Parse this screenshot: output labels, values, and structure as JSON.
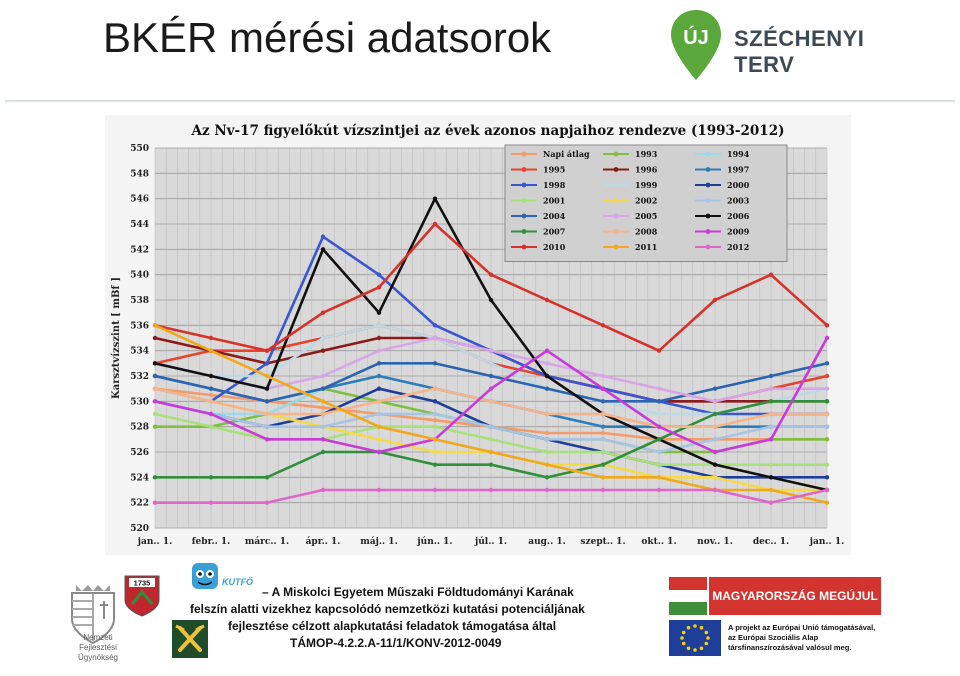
{
  "slide": {
    "title": "BKÉR mérési adatsorok"
  },
  "header_logo": {
    "text_uj": "ÚJ",
    "text_brand": "SZÉCHENYI TERV"
  },
  "chart_data": {
    "type": "line",
    "title": "Az Nv-17 figyelőkút vízszintjei az évek azonos napjaihoz rendezve (1993-2012)",
    "ylabel": "Karsztvízszint [ mBf ]",
    "xlabel": "",
    "ylim": [
      520,
      550
    ],
    "y_ticks": [
      "550",
      "548",
      "546",
      "544",
      "542",
      "540",
      "538",
      "536",
      "534",
      "532",
      "530",
      "528",
      "526",
      "524",
      "522",
      "520"
    ],
    "x_ticks": [
      "jan.. 1.",
      "febr.. 1.",
      "márc.. 1.",
      "ápr.. 1.",
      "máj.. 1.",
      "jún.. 1.",
      "júl.. 1.",
      "aug.. 1.",
      "szept.. 1.",
      "okt.. 1.",
      "nov.. 1.",
      "dec.. 1.",
      "jan.. 1."
    ],
    "grid": true,
    "legend_position": "top-right",
    "series": [
      {
        "name": "Napi átlag",
        "color": "#f39b6b",
        "values": [
          531,
          530.5,
          530,
          529.5,
          529,
          528.5,
          528,
          527.5,
          527.5,
          527,
          527,
          527,
          527
        ]
      },
      {
        "name": "1993",
        "color": "#7fbf3f",
        "values": [
          528,
          528,
          529,
          531,
          530,
          529,
          528,
          527,
          527,
          526,
          526,
          527,
          527
        ]
      },
      {
        "name": "1994",
        "color": "#9dd9e8",
        "values": [
          530,
          529,
          529,
          531,
          532,
          531,
          530,
          529,
          529,
          528,
          528,
          528,
          528
        ]
      },
      {
        "name": "1995",
        "color": "#e8432d",
        "values": [
          533,
          534,
          534,
          535,
          536,
          535,
          533,
          532,
          531,
          530,
          530,
          531,
          532
        ]
      },
      {
        "name": "1996",
        "color": "#8b1a1a",
        "values": [
          535,
          534,
          533,
          534,
          535,
          535,
          534,
          532,
          531,
          530,
          530,
          530,
          530
        ]
      },
      {
        "name": "1997",
        "color": "#2e7db8",
        "values": [
          532,
          531,
          530,
          531,
          532,
          531,
          530,
          529,
          528,
          528,
          528,
          528,
          528
        ]
      },
      {
        "name": "1998",
        "color": "#3a56d1",
        "values": [
          531,
          530,
          533,
          543,
          540,
          536,
          534,
          532,
          531,
          530,
          529,
          529,
          529
        ]
      },
      {
        "name": "1999",
        "color": "#bcd9e6",
        "values": [
          533,
          532,
          532,
          535,
          536,
          535,
          533,
          531,
          530,
          529,
          529,
          530,
          531
        ]
      },
      {
        "name": "2000",
        "color": "#1f3e9a",
        "values": [
          530,
          529,
          528,
          529,
          531,
          530,
          528,
          527,
          526,
          525,
          524,
          524,
          524
        ]
      },
      {
        "name": "2001",
        "color": "#a8e07a",
        "values": [
          529,
          528,
          527,
          527,
          528,
          528,
          527,
          526,
          526,
          525,
          525,
          525,
          525
        ]
      },
      {
        "name": "2002",
        "color": "#f5d94a",
        "values": [
          531,
          530,
          529,
          528,
          527,
          526,
          526,
          525,
          525,
          524,
          524,
          523,
          523
        ]
      },
      {
        "name": "2003",
        "color": "#a6c4e3",
        "values": [
          530,
          529,
          528,
          528,
          529,
          529,
          528,
          527,
          527,
          526,
          527,
          528,
          528
        ]
      },
      {
        "name": "2004",
        "color": "#2b64b0",
        "values": [
          532,
          531,
          530,
          531,
          533,
          533,
          532,
          531,
          530,
          530,
          531,
          532,
          533
        ]
      },
      {
        "name": "2005",
        "color": "#d8a6e8",
        "values": [
          533,
          532,
          531,
          532,
          534,
          535,
          534,
          533,
          532,
          531,
          530,
          531,
          531
        ]
      },
      {
        "name": "2006",
        "color": "#111111",
        "values": [
          533,
          532,
          531,
          542,
          537,
          546,
          538,
          532,
          529,
          527,
          525,
          524,
          523
        ]
      },
      {
        "name": "2007",
        "color": "#2f8f3a",
        "values": [
          524,
          524,
          524,
          526,
          526,
          525,
          525,
          524,
          525,
          527,
          529,
          530,
          530
        ]
      },
      {
        "name": "2008",
        "color": "#f6b48a",
        "values": [
          531,
          530,
          529,
          529,
          530,
          531,
          530,
          529,
          529,
          528,
          528,
          529,
          529
        ]
      },
      {
        "name": "2009",
        "color": "#c83ad9",
        "values": [
          530,
          529,
          527,
          527,
          526,
          527,
          531,
          534,
          531,
          528,
          526,
          527,
          535
        ]
      },
      {
        "name": "2010",
        "color": "#d7322a",
        "values": [
          536,
          535,
          534,
          537,
          539,
          544,
          540,
          538,
          536,
          534,
          538,
          540,
          536
        ]
      },
      {
        "name": "2011",
        "color": "#f0a81c",
        "values": [
          536,
          534,
          532,
          530,
          528,
          527,
          526,
          525,
          524,
          524,
          523,
          523,
          522
        ]
      },
      {
        "name": "2012",
        "color": "#e066c9",
        "values": [
          522,
          522,
          522,
          523,
          523,
          523,
          523,
          523,
          523,
          523,
          523,
          522,
          523
        ]
      }
    ]
  },
  "footer": {
    "line1": "– A Miskolci Egyetem Műszaki Földtudományi Karának",
    "line2": "felszín alatti vizekhez kapcsolódó nemzetközi kutatási potenciáljának",
    "line3": "fejlesztése célzott alapkutatási feladatok támogatása által",
    "line4": "TÁMOP-4.2.2.A-11/1/KONV-2012-0049",
    "nfu_line1": "Nemzeti",
    "nfu_line2": "Fejlesztési Ügynökség",
    "crest_year": "1735",
    "kutfo_label": "KUTFŐ",
    "megujul": "MAGYARORSZÁG MEGÚJUL",
    "eu_line1": "A projekt az Európai Unió támogatásával,",
    "eu_line2": "az Európai Szociális Alap",
    "eu_line3": "társfinanszírozásával valósul meg."
  }
}
